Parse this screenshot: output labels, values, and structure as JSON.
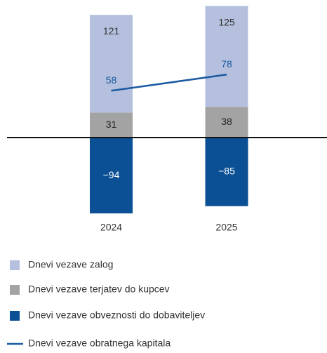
{
  "chart_data": {
    "type": "bar",
    "categories": [
      "2024",
      "2025"
    ],
    "series": [
      {
        "name": "Dnevi vezave zalog",
        "color": "#b4c0de",
        "values": [
          121,
          125
        ]
      },
      {
        "name": "Dnevi vezave terjatev do kupcev",
        "color": "#a3a3a3",
        "values": [
          31,
          38
        ]
      },
      {
        "name": "Dnevi vezave obveznosti do dobaviteljev",
        "color": "#0b4f94",
        "values": [
          -94,
          -85
        ],
        "value_labels": [
          "−94",
          "−85"
        ]
      },
      {
        "name": "Dnevi vezave obratnega kapitala",
        "type": "line",
        "color": "#1a5aa0",
        "values": [
          58,
          78
        ]
      }
    ]
  }
}
